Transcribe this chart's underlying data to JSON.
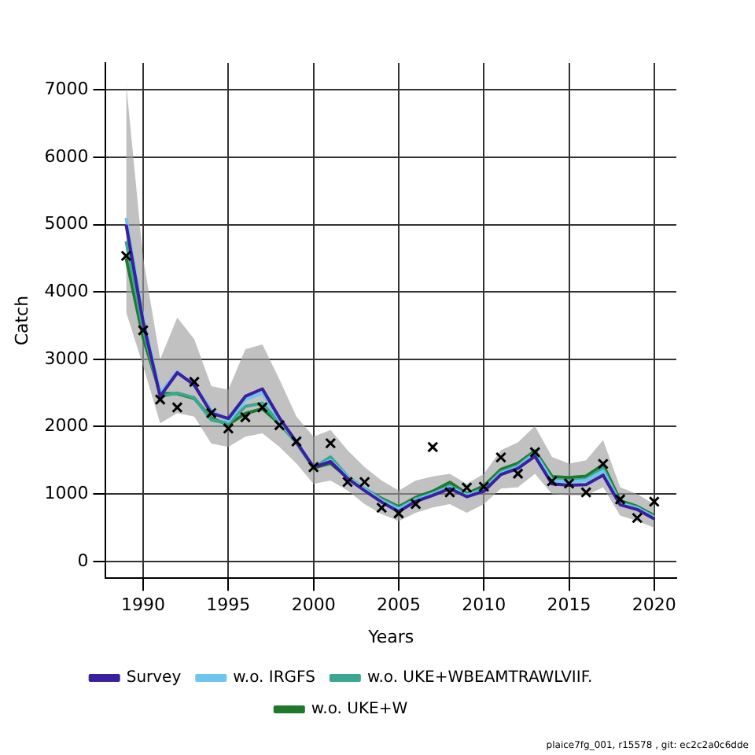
{
  "chart_data": {
    "type": "line",
    "xlabel": "Years",
    "ylabel": "Catch",
    "x": [
      1989,
      1990,
      1991,
      1992,
      1993,
      1994,
      1995,
      1996,
      1997,
      1998,
      1999,
      2000,
      2001,
      2002,
      2003,
      2004,
      2005,
      2006,
      2007,
      2008,
      2009,
      2010,
      2011,
      2012,
      2013,
      2014,
      2015,
      2016,
      2017,
      2018,
      2019,
      2020
    ],
    "xlim": [
      1987.8,
      2021.3
    ],
    "xticks": [
      1990,
      1995,
      2000,
      2005,
      2010,
      2015,
      2020
    ],
    "ylim": [
      -250,
      7400
    ],
    "yticks": [
      0,
      1000,
      2000,
      3000,
      4000,
      5000,
      6000,
      7000
    ],
    "grid": true,
    "legend": "bottom",
    "line_style": "solid",
    "series": [
      {
        "name": "Survey",
        "color": "#3b1fa0",
        "values": [
          5000,
          3550,
          2450,
          2800,
          2620,
          2200,
          2120,
          2450,
          2560,
          2130,
          1770,
          1400,
          1480,
          1230,
          1050,
          880,
          740,
          890,
          980,
          1080,
          960,
          1040,
          1290,
          1380,
          1560,
          1150,
          1130,
          1140,
          1280,
          840,
          770,
          630
        ]
      },
      {
        "name": "w.o. IRGFS",
        "color": "#6ec6f0",
        "values": [
          5100,
          3600,
          2500,
          2820,
          2600,
          2250,
          2080,
          2400,
          2500,
          2100,
          1780,
          1400,
          1500,
          1250,
          1070,
          900,
          770,
          910,
          1000,
          1100,
          980,
          1060,
          1310,
          1400,
          1600,
          1200,
          1180,
          1200,
          1340,
          860,
          790,
          650
        ]
      },
      {
        "name": "w.o. UKE+WBEAMTRAWLVIIF.",
        "color": "#3aa890",
        "values": [
          4750,
          3450,
          2450,
          2500,
          2430,
          2100,
          2050,
          2300,
          2350,
          2050,
          1760,
          1390,
          1550,
          1260,
          1080,
          920,
          790,
          930,
          1010,
          1120,
          990,
          1080,
          1330,
          1420,
          1620,
          1220,
          1200,
          1220,
          1380,
          870,
          800,
          660
        ]
      },
      {
        "name": "w.o. UKE+W",
        "color": "#1e7a2a",
        "values": [
          4500,
          3320,
          2490,
          2490,
          2420,
          2125,
          2030,
          2195,
          2265,
          2045,
          1765,
          1385,
          1455,
          1245,
          1075,
          935,
          810,
          950,
          1040,
          1175,
          1005,
          1120,
          1365,
          1455,
          1640,
          1260,
          1245,
          1265,
          1435,
          900,
          815,
          680
        ],
        "lower": [
          3700,
          2900,
          2050,
          2200,
          2150,
          1750,
          1700,
          1850,
          1900,
          1700,
          1450,
          1150,
          1200,
          1050,
          850,
          700,
          600,
          720,
          800,
          850,
          720,
          850,
          1080,
          1100,
          1300,
          1000,
          980,
          980,
          1100,
          680,
          600,
          500
        ],
        "upper": [
          7100,
          4500,
          3000,
          3620,
          3300,
          2600,
          2550,
          3150,
          3220,
          2700,
          2150,
          1850,
          1950,
          1650,
          1400,
          1200,
          1050,
          1200,
          1260,
          1300,
          1150,
          1300,
          1650,
          1765,
          2010,
          1550,
          1450,
          1500,
          1800,
          1100,
          1000,
          850
        ]
      },
      {
        "type": "scatter",
        "marker": "cross",
        "color": "#000000",
        "values": [
          4535,
          3430,
          2403,
          2285,
          2665,
          2202,
          1973,
          2140,
          2285,
          2021,
          1780,
          1398,
          1753,
          1178,
          1178,
          796,
          713,
          852,
          1697,
          1024,
          1094,
          1108,
          1543,
          1302,
          1620,
          1191,
          1156,
          1024,
          1447,
          920,
          644,
          886
        ]
      }
    ],
    "annotations": [
      "plaice7fg_001, r15578 , git: ec2c2a0c6dde"
    ]
  }
}
